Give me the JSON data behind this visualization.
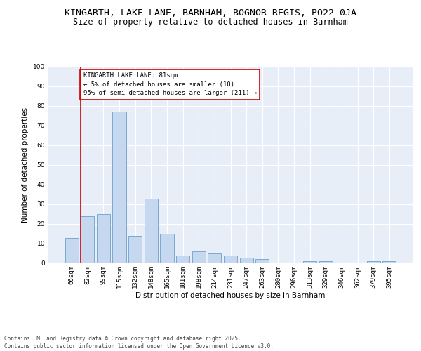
{
  "title": "KINGARTH, LAKE LANE, BARNHAM, BOGNOR REGIS, PO22 0JA",
  "subtitle": "Size of property relative to detached houses in Barnham",
  "xlabel": "Distribution of detached houses by size in Barnham",
  "ylabel": "Number of detached properties",
  "categories": [
    "66sqm",
    "82sqm",
    "99sqm",
    "115sqm",
    "132sqm",
    "148sqm",
    "165sqm",
    "181sqm",
    "198sqm",
    "214sqm",
    "231sqm",
    "247sqm",
    "263sqm",
    "280sqm",
    "296sqm",
    "313sqm",
    "329sqm",
    "346sqm",
    "362sqm",
    "379sqm",
    "395sqm"
  ],
  "values": [
    13,
    24,
    25,
    77,
    14,
    33,
    15,
    4,
    6,
    5,
    4,
    3,
    2,
    0,
    0,
    1,
    1,
    0,
    0,
    1,
    1
  ],
  "bar_color": "#c5d8f0",
  "bar_edge_color": "#6aa0cc",
  "background_color": "#e8eef8",
  "grid_color": "#ffffff",
  "annotation_box_text": "KINGARTH LAKE LANE: 81sqm\n← 5% of detached houses are smaller (10)\n95% of semi-detached houses are larger (211) →",
  "annotation_box_color": "#cc0000",
  "red_line_bin": 1,
  "ylim": [
    0,
    100
  ],
  "yticks": [
    0,
    10,
    20,
    30,
    40,
    50,
    60,
    70,
    80,
    90,
    100
  ],
  "footer": "Contains HM Land Registry data © Crown copyright and database right 2025.\nContains public sector information licensed under the Open Government Licence v3.0.",
  "title_fontsize": 9.5,
  "subtitle_fontsize": 8.5,
  "xlabel_fontsize": 7.5,
  "ylabel_fontsize": 7.5,
  "tick_fontsize": 6.5,
  "annotation_fontsize": 6.5,
  "footer_fontsize": 5.5
}
